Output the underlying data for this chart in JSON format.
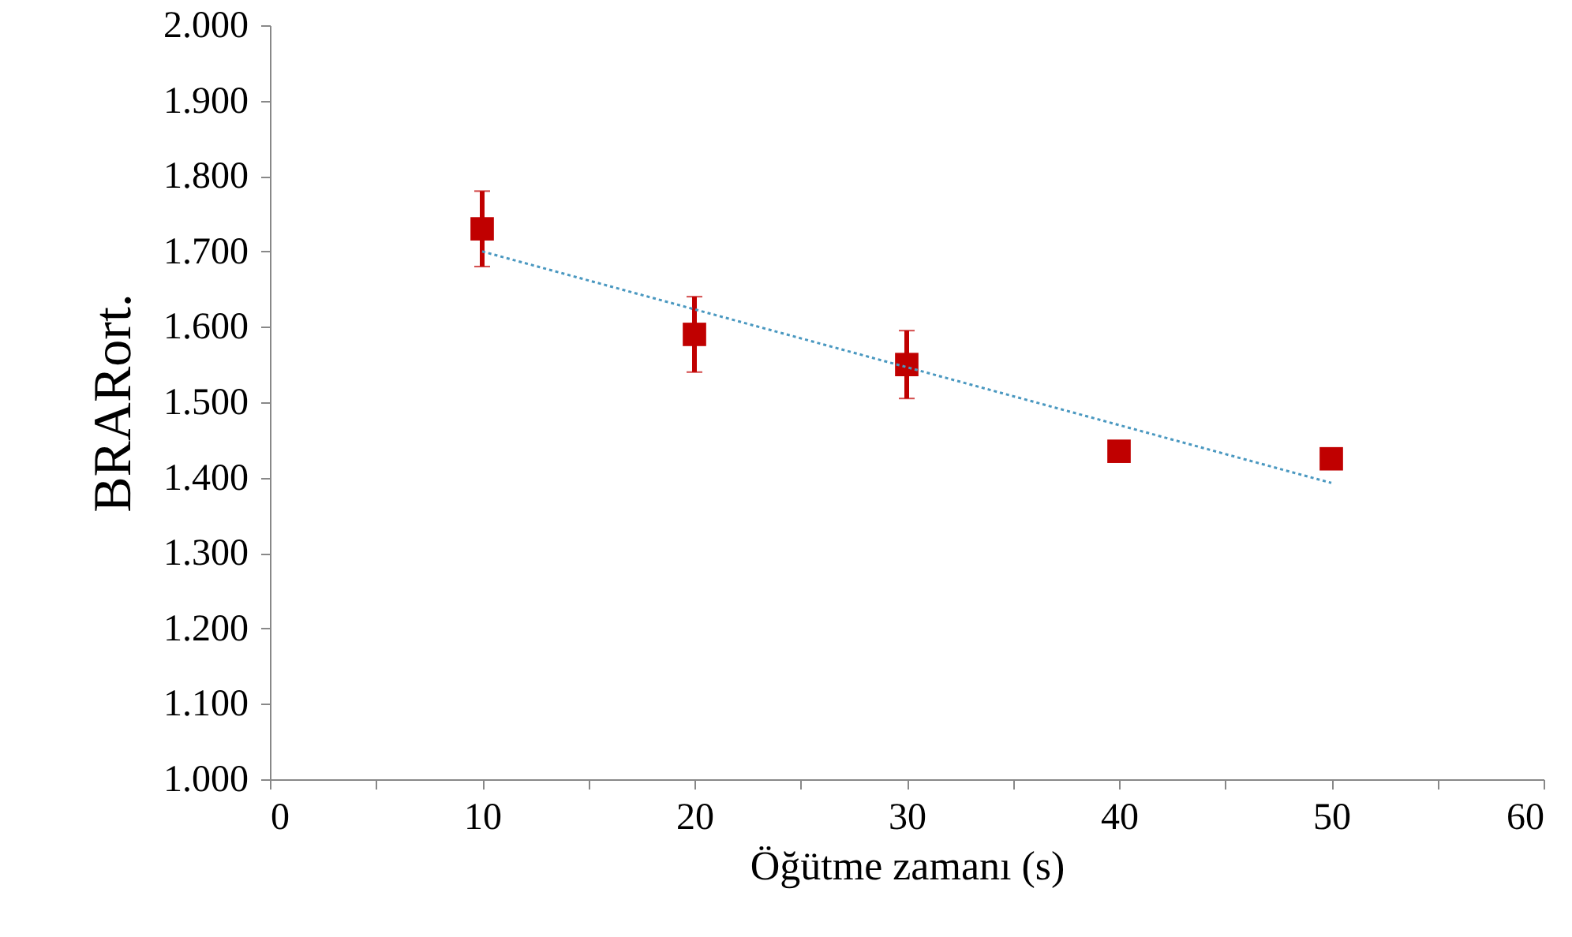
{
  "chart_data": {
    "type": "scatter",
    "xlabel": "Öğütme zamanı (s)",
    "ylabel": "BRARort.",
    "xlim": [
      0,
      60
    ],
    "ylim": [
      1000,
      2000
    ],
    "xticks": [
      0,
      {
        "value": 5,
        "label": null
      },
      10,
      {
        "value": 15,
        "label": null
      },
      20,
      {
        "value": 25,
        "label": null
      },
      30,
      {
        "value": 35,
        "label": null
      },
      40,
      {
        "value": 45,
        "label": null
      },
      50,
      {
        "value": 55,
        "label": null
      },
      60
    ],
    "yticks": [
      {
        "value": 1000,
        "label": "1.000"
      },
      {
        "value": 1100,
        "label": "1.100"
      },
      {
        "value": 1200,
        "label": "1.200"
      },
      {
        "value": 1300,
        "label": "1.300"
      },
      {
        "value": 1400,
        "label": "1.400"
      },
      {
        "value": 1500,
        "label": "1.500"
      },
      {
        "value": 1600,
        "label": "1.600"
      },
      {
        "value": 1700,
        "label": "1.700"
      },
      {
        "value": 1800,
        "label": "1.800"
      },
      {
        "value": 1900,
        "label": "1.900"
      },
      {
        "value": 2000,
        "label": "2.000"
      }
    ],
    "marker": "square",
    "series": [
      {
        "color": "#c00000",
        "x": [
          10,
          20,
          30,
          40,
          50
        ],
        "values": [
          1730,
          1590,
          1550,
          1435,
          1425
        ],
        "errors": [
          50,
          50,
          45,
          null,
          null
        ]
      },
      {
        "type": "line",
        "color": "#4a98c0",
        "line_style": "dotted",
        "marker": "none",
        "x": [
          10,
          50
        ],
        "values": [
          1700,
          1393
        ]
      }
    ]
  }
}
